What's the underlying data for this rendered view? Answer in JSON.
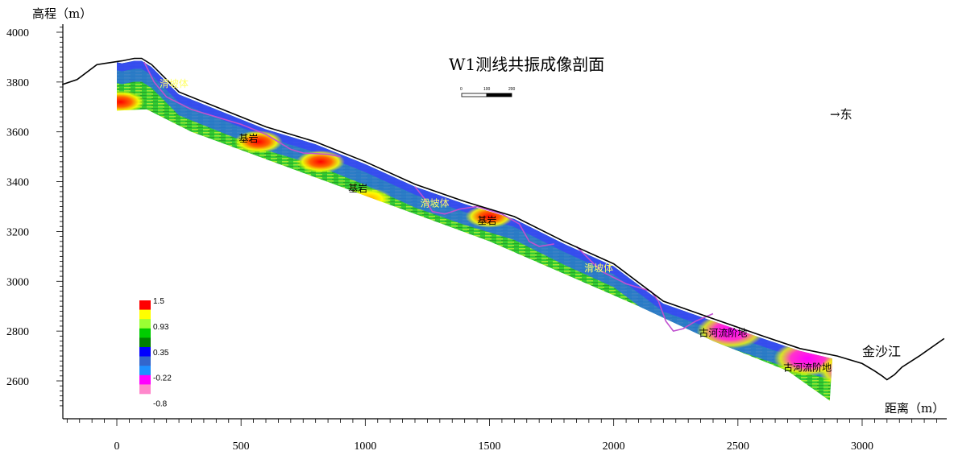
{
  "chart_data": {
    "type": "heatmap",
    "title": "W1测线共振成像剖面",
    "ylabel": "高程（m）",
    "xlabel": "距离（m）",
    "xlim": [
      -220,
      3330
    ],
    "ylim": [
      2490,
      4030
    ],
    "x_ticks": [
      0,
      500,
      1000,
      1500,
      2000,
      2500,
      3000
    ],
    "y_ticks": [
      2600,
      2800,
      3000,
      3200,
      3400,
      3600,
      3800,
      4000
    ],
    "direction_label": "→东",
    "river_label": "金沙江",
    "scale_bar": {
      "labels": [
        "0",
        "100",
        "200"
      ]
    },
    "colorbar": {
      "labels": [
        "1.5",
        "0.93",
        "0.35",
        "-0.22",
        "-0.8"
      ],
      "colors": [
        "#ff0000",
        "#ffff00",
        "#99ff33",
        "#00cc00",
        "#008000",
        "#0000ff",
        "#3366cc",
        "#1e90ff",
        "#ff00ff",
        "#ff88cc"
      ]
    },
    "annotations": [
      {
        "text": "滑坡体",
        "x": 230,
        "y": 3780,
        "color": "yellow"
      },
      {
        "text": "基岩",
        "x": 530,
        "y": 3560,
        "color": "black"
      },
      {
        "text": "基岩",
        "x": 970,
        "y": 3360,
        "color": "black"
      },
      {
        "text": "滑坡体",
        "x": 1280,
        "y": 3300,
        "color": "yellow"
      },
      {
        "text": "基岩",
        "x": 1490,
        "y": 3230,
        "color": "black"
      },
      {
        "text": "滑坡体",
        "x": 1940,
        "y": 3040,
        "color": "yellow"
      },
      {
        "text": "古河流阶地",
        "x": 2440,
        "y": 2780,
        "color": "black"
      },
      {
        "text": "古河流阶地",
        "x": 2780,
        "y": 2640,
        "color": "black"
      }
    ],
    "surface_profile": [
      {
        "x": -220,
        "y": 3790
      },
      {
        "x": -160,
        "y": 3810
      },
      {
        "x": -80,
        "y": 3870
      },
      {
        "x": 20,
        "y": 3885
      },
      {
        "x": 70,
        "y": 3895
      },
      {
        "x": 100,
        "y": 3895
      },
      {
        "x": 140,
        "y": 3870
      },
      {
        "x": 250,
        "y": 3760
      },
      {
        "x": 400,
        "y": 3700
      },
      {
        "x": 600,
        "y": 3620
      },
      {
        "x": 800,
        "y": 3560
      },
      {
        "x": 1000,
        "y": 3480
      },
      {
        "x": 1200,
        "y": 3390
      },
      {
        "x": 1400,
        "y": 3320
      },
      {
        "x": 1600,
        "y": 3260
      },
      {
        "x": 1800,
        "y": 3160
      },
      {
        "x": 2000,
        "y": 3070
      },
      {
        "x": 2200,
        "y": 2920
      },
      {
        "x": 2400,
        "y": 2850
      },
      {
        "x": 2600,
        "y": 2780
      },
      {
        "x": 2750,
        "y": 2730
      },
      {
        "x": 2900,
        "y": 2700
      },
      {
        "x": 3000,
        "y": 2670
      },
      {
        "x": 3050,
        "y": 2640
      },
      {
        "x": 3080,
        "y": 2620
      },
      {
        "x": 3100,
        "y": 2605
      },
      {
        "x": 3130,
        "y": 2625
      },
      {
        "x": 3160,
        "y": 2655
      },
      {
        "x": 3230,
        "y": 2700
      },
      {
        "x": 3330,
        "y": 2770
      }
    ],
    "section_bottom": [
      {
        "x": 0,
        "y": 3685
      },
      {
        "x": 120,
        "y": 3690
      },
      {
        "x": 300,
        "y": 3600
      },
      {
        "x": 600,
        "y": 3490
      },
      {
        "x": 900,
        "y": 3380
      },
      {
        "x": 1200,
        "y": 3270
      },
      {
        "x": 1500,
        "y": 3160
      },
      {
        "x": 1800,
        "y": 3030
      },
      {
        "x": 2100,
        "y": 2900
      },
      {
        "x": 2400,
        "y": 2760
      },
      {
        "x": 2700,
        "y": 2640
      },
      {
        "x": 2870,
        "y": 2520
      }
    ],
    "slide_boundaries": [
      [
        {
          "x": 110,
          "y": 3880
        },
        {
          "x": 150,
          "y": 3800
        },
        {
          "x": 200,
          "y": 3740
        },
        {
          "x": 300,
          "y": 3690
        },
        {
          "x": 400,
          "y": 3660
        },
        {
          "x": 500,
          "y": 3630
        },
        {
          "x": 600,
          "y": 3590
        },
        {
          "x": 650,
          "y": 3560
        },
        {
          "x": 700,
          "y": 3530
        },
        {
          "x": 750,
          "y": 3515
        },
        {
          "x": 850,
          "y": 3510
        },
        {
          "x": 900,
          "y": 3500
        }
      ],
      [
        {
          "x": 1200,
          "y": 3380
        },
        {
          "x": 1240,
          "y": 3330
        },
        {
          "x": 1270,
          "y": 3280
        },
        {
          "x": 1320,
          "y": 3270
        },
        {
          "x": 1380,
          "y": 3290
        },
        {
          "x": 1450,
          "y": 3300
        },
        {
          "x": 1550,
          "y": 3270
        },
        {
          "x": 1620,
          "y": 3230
        },
        {
          "x": 1660,
          "y": 3160
        },
        {
          "x": 1700,
          "y": 3140
        },
        {
          "x": 1760,
          "y": 3150
        }
      ],
      [
        {
          "x": 1850,
          "y": 3140
        },
        {
          "x": 1900,
          "y": 3090
        },
        {
          "x": 1950,
          "y": 3040
        },
        {
          "x": 2050,
          "y": 2990
        },
        {
          "x": 2150,
          "y": 2960
        },
        {
          "x": 2180,
          "y": 2920
        },
        {
          "x": 2210,
          "y": 2840
        },
        {
          "x": 2240,
          "y": 2800
        },
        {
          "x": 2280,
          "y": 2810
        },
        {
          "x": 2330,
          "y": 2840
        },
        {
          "x": 2400,
          "y": 2870
        }
      ]
    ],
    "hotspots": [
      {
        "x": 15,
        "y": 3720,
        "level": "red"
      },
      {
        "x": 570,
        "y": 3560,
        "level": "red"
      },
      {
        "x": 820,
        "y": 3480,
        "level": "red"
      },
      {
        "x": 1010,
        "y": 3330,
        "level": "orange"
      },
      {
        "x": 1500,
        "y": 3260,
        "level": "red"
      },
      {
        "x": 2470,
        "y": 2800,
        "level": "magenta"
      },
      {
        "x": 2780,
        "y": 2690,
        "level": "magenta"
      },
      {
        "x": 2960,
        "y": 2640,
        "level": "magenta"
      }
    ]
  }
}
